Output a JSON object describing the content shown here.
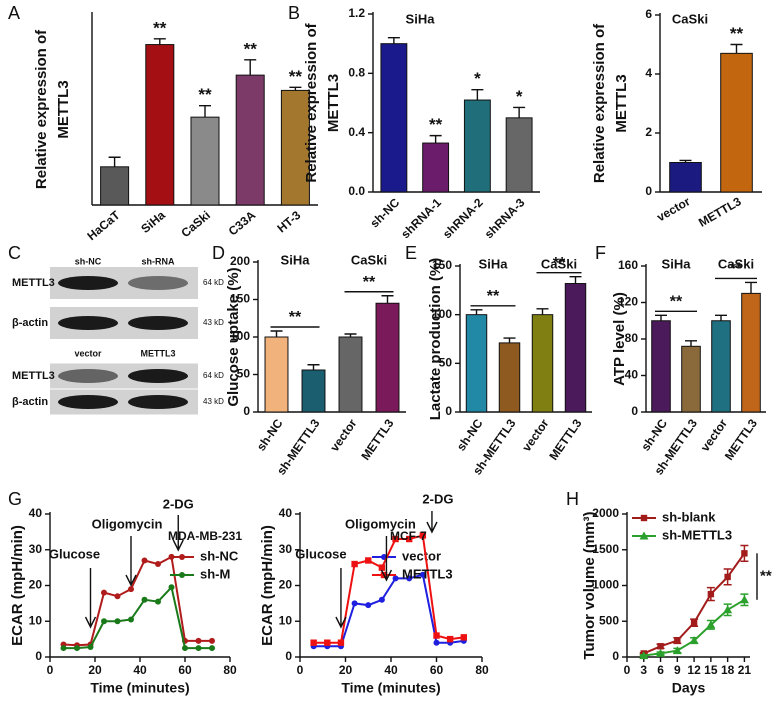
{
  "chart_data": [
    {
      "type": "bar",
      "panel": "A",
      "ylabel": [
        "Relative expression of",
        "METTL3"
      ],
      "categories": [
        "HaCaT",
        "SiHa",
        "CaSki",
        "C33A",
        "HT-3"
      ],
      "values": [
        1.0,
        4.2,
        2.3,
        3.4,
        3.0
      ],
      "errors": [
        0.25,
        0.15,
        0.3,
        0.4,
        0.08
      ],
      "significance": [
        null,
        "**",
        "**",
        "**",
        "**"
      ],
      "colors": [
        "#595959",
        "#a30f12",
        "#8a8a8a",
        "#7b3a68",
        "#a3782e"
      ],
      "ylim": [
        0,
        5
      ]
    },
    {
      "type": "bar",
      "panel": "B",
      "title": "SiHa",
      "ylabel": [
        "Relative expression of",
        "METTL3"
      ],
      "categories": [
        "sh-NC",
        "shRNA-1",
        "shRNA-2",
        "shRNA-3"
      ],
      "values": [
        1.0,
        0.33,
        0.62,
        0.5
      ],
      "errors": [
        0.04,
        0.05,
        0.07,
        0.07
      ],
      "significance": [
        null,
        "**",
        "*",
        "*"
      ],
      "colors": [
        "#1a1a8c",
        "#6b1d6b",
        "#1f6e7a",
        "#676767"
      ],
      "ylim": [
        0,
        1.2
      ],
      "yticks": [
        {
          "value": 0,
          "label": "0.0"
        },
        0.4,
        0.8,
        1.2
      ]
    },
    {
      "type": "bar",
      "title": "CaSki",
      "ylabel": [
        "Relative expression of",
        "METTL3"
      ],
      "categories": [
        "vector",
        "METTL3"
      ],
      "values": [
        1.0,
        4.7
      ],
      "errors": [
        0.07,
        0.3
      ],
      "significance": [
        null,
        "**"
      ],
      "colors": [
        "#1a1a80",
        "#c2660f"
      ],
      "ylim": [
        0,
        6
      ],
      "yticks": [
        0,
        2,
        4,
        6
      ]
    },
    {
      "type": "bar",
      "panel": "D",
      "ylabel": [
        "Glucose uptake (%)"
      ],
      "categories": [
        "sh-NC",
        "sh-METTL3",
        "vector",
        "METTL3"
      ],
      "values": [
        100,
        56,
        100,
        145
      ],
      "errors": [
        8,
        7,
        4,
        10
      ],
      "colors": [
        "#f2b27c",
        "#1a5e70",
        "#666666",
        "#7a1a5a"
      ],
      "groups": [
        "SiHa",
        "CaSki"
      ],
      "pair_labels": [
        "**",
        "**"
      ],
      "ylim": [
        0,
        200
      ],
      "yticks": [
        0,
        50,
        100,
        150,
        200
      ]
    },
    {
      "type": "bar",
      "panel": "E",
      "ylabel": [
        "Lactate production (%)"
      ],
      "categories": [
        "sh-NC",
        "sh-METTL3",
        "vector",
        "METTL3"
      ],
      "values": [
        100,
        71,
        100,
        132
      ],
      "errors": [
        5,
        5,
        6,
        7
      ],
      "colors": [
        "#2189a5",
        "#8f5a1f",
        "#808012",
        "#4a1a5a"
      ],
      "groups": [
        "SiHa",
        "CaSki"
      ],
      "pair_labels": [
        "**",
        "**"
      ],
      "ylim": [
        0,
        150
      ],
      "yticks": [
        0,
        50,
        100,
        150
      ]
    },
    {
      "type": "bar",
      "panel": "F",
      "ylabel": [
        "ATP level (%)"
      ],
      "categories": [
        "sh-NC",
        "sh-METTL3",
        "vector",
        "METTL3"
      ],
      "values": [
        100,
        72,
        100,
        130
      ],
      "errors": [
        6,
        6,
        6,
        12
      ],
      "colors": [
        "#4a1a5a",
        "#8a6a3a",
        "#1f7080",
        "#c0661a"
      ],
      "groups": [
        "SiHa",
        "CaSki"
      ],
      "pair_labels": [
        "**",
        "**"
      ],
      "ylim": [
        0,
        160
      ],
      "yticks": [
        0,
        40,
        80,
        120,
        160
      ]
    },
    {
      "type": "line",
      "panel": "G",
      "ylabel": "ECAR (mpH/min)",
      "xlabel": "Time (minutes)",
      "legend_title": "MDA-MB-231",
      "x": [
        6,
        12,
        18,
        24,
        30,
        36,
        42,
        48,
        54,
        60,
        66,
        72
      ],
      "series": [
        {
          "name": "sh-NC",
          "color": "#b01c1c",
          "marker": "circle",
          "values": [
            3.5,
            3.3,
            3.5,
            18,
            17,
            19,
            27,
            26,
            28,
            4.5,
            4.5,
            4.5
          ]
        },
        {
          "name": "sh-M",
          "color": "#1a7a1a",
          "marker": "circle",
          "values": [
            2.5,
            2.5,
            2.8,
            10,
            10,
            10.5,
            16,
            15.5,
            19.5,
            2.5,
            2.5,
            2.5
          ]
        }
      ],
      "events": [
        {
          "label": "Glucose",
          "x": 18
        },
        {
          "label": "Oligomycin",
          "x": 36
        },
        {
          "label": "2-DG",
          "x": 57
        }
      ],
      "xlim": [
        0,
        80
      ],
      "xticks": [
        0,
        20,
        40,
        60,
        80
      ],
      "ylim": [
        0,
        40
      ],
      "yticks": [
        0,
        10,
        20,
        30,
        40
      ]
    },
    {
      "type": "line",
      "ylabel": "ECAR (mpH/min)",
      "xlabel": "Time (minutes)",
      "legend_title": "MCF-7",
      "x": [
        6,
        12,
        18,
        24,
        30,
        36,
        42,
        48,
        54,
        60,
        66,
        72
      ],
      "series": [
        {
          "name": "vector",
          "color": "#1f1fe0",
          "marker": "circle",
          "values": [
            3,
            3,
            3,
            15,
            14.5,
            16,
            22,
            22,
            23,
            4,
            4,
            4.5
          ]
        },
        {
          "name": "METTL3",
          "color": "#ee1111",
          "marker": "square",
          "values": [
            4,
            4,
            4,
            26,
            27,
            25,
            33,
            33,
            34,
            6,
            5,
            5.5
          ]
        }
      ],
      "events": [
        {
          "label": "Glucose",
          "x": 18
        },
        {
          "label": "Oligomycin",
          "x": 38
        },
        {
          "label": "2-DG",
          "x": 58
        }
      ],
      "xlim": [
        0,
        80
      ],
      "xticks": [
        0,
        20,
        40,
        60,
        80
      ],
      "ylim": [
        0,
        40
      ],
      "yticks": [
        0,
        10,
        20,
        30,
        40
      ]
    },
    {
      "type": "line",
      "panel": "H",
      "ylabel": "Tumor volume (mm³)",
      "xlabel": "Days",
      "x": [
        3,
        6,
        9,
        12,
        15,
        18,
        21
      ],
      "series": [
        {
          "name": "sh-blank",
          "color": "#a31c1c",
          "marker": "square",
          "values": [
            50,
            150,
            230,
            480,
            880,
            1120,
            1450
          ],
          "errors": [
            10,
            30,
            40,
            50,
            90,
            110,
            110
          ]
        },
        {
          "name": "sh-METTL3",
          "color": "#2ca02c",
          "marker": "triangle",
          "values": [
            20,
            50,
            90,
            230,
            450,
            660,
            800
          ],
          "errors": [
            10,
            20,
            30,
            40,
            60,
            80,
            80
          ]
        }
      ],
      "significance": "**",
      "xlim": [
        0,
        22
      ],
      "xticks": [
        0,
        3,
        6,
        9,
        12,
        15,
        18,
        21
      ],
      "ylim": [
        0,
        2000
      ],
      "yticks": [
        0,
        500,
        1000,
        1500,
        2000
      ]
    }
  ],
  "blot": {
    "panel": "C",
    "groups": [
      {
        "lanes": [
          "sh-NC",
          "sh-RNA"
        ],
        "rows": [
          {
            "name": "METTL3",
            "size": "64 kD"
          },
          {
            "name": "β-actin",
            "size": "43 kD"
          }
        ]
      },
      {
        "lanes": [
          "vector",
          "METTL3"
        ],
        "rows": [
          {
            "name": "METTL3",
            "size": "64 kD"
          },
          {
            "name": "β-actin",
            "size": "43 kD"
          }
        ]
      }
    ]
  }
}
